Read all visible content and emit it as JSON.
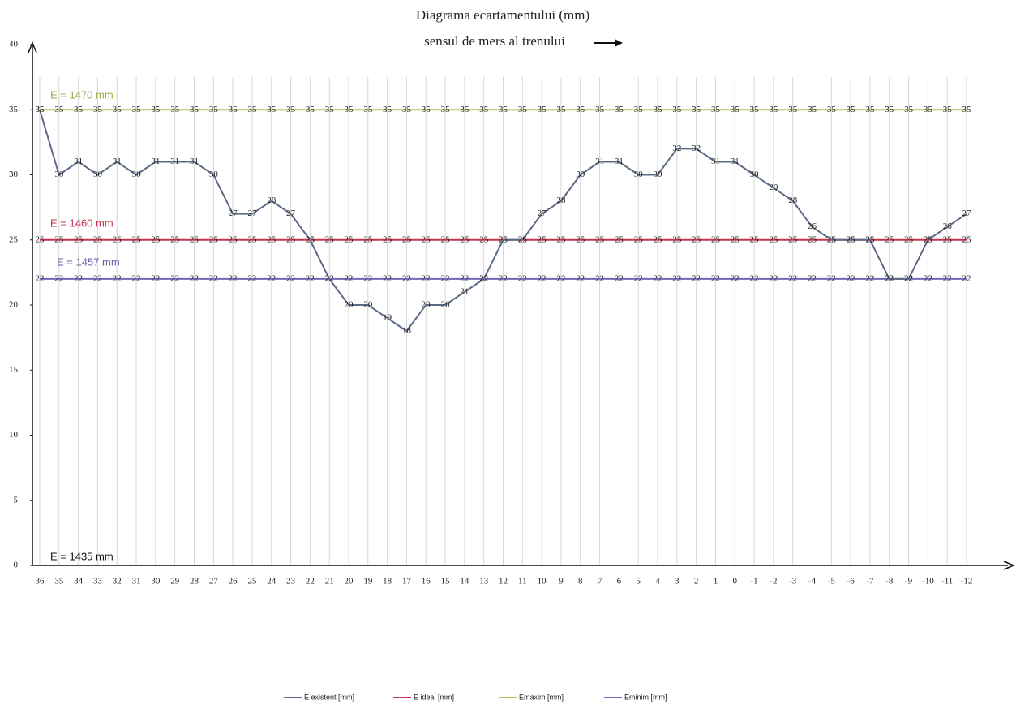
{
  "chart_data": {
    "type": "line",
    "title": "Diagrama ecartamentului (mm)",
    "subtitle": "sensul de mers al trenului",
    "categories": [
      "36",
      "35",
      "34",
      "33",
      "32",
      "31",
      "30",
      "29",
      "28",
      "27",
      "26",
      "25",
      "24",
      "23",
      "22",
      "21",
      "20",
      "19",
      "18",
      "17",
      "16",
      "15",
      "14",
      "13",
      "12",
      "11",
      "10",
      "9",
      "8",
      "7",
      "6",
      "5",
      "4",
      "3",
      "2",
      "1",
      "0",
      "-1",
      "-2",
      "-3",
      "-4",
      "-5",
      "-6",
      "-7",
      "-8",
      "-9",
      "-10",
      "-11",
      "-12"
    ],
    "series": [
      {
        "name": "E existent [mm]",
        "color": "#5b6a86",
        "values": [
          35,
          30,
          31,
          30,
          31,
          30,
          31,
          31,
          31,
          30,
          27,
          27,
          28,
          27,
          25,
          22,
          20,
          20,
          19,
          18,
          20,
          20,
          21,
          22,
          25,
          25,
          27,
          28,
          30,
          31,
          31,
          30,
          30,
          32,
          32,
          31,
          31,
          30,
          29,
          28,
          26,
          25,
          25,
          25,
          22,
          22,
          25,
          26,
          27
        ]
      },
      {
        "name": "E ideal [mm]",
        "color": "#c8334f",
        "values": [
          25,
          25,
          25,
          25,
          25,
          25,
          25,
          25,
          25,
          25,
          25,
          25,
          25,
          25,
          25,
          25,
          25,
          25,
          25,
          25,
          25,
          25,
          25,
          25,
          25,
          25,
          25,
          25,
          25,
          25,
          25,
          25,
          25,
          25,
          25,
          25,
          25,
          25,
          25,
          25,
          25,
          25,
          25,
          25,
          25,
          25,
          25,
          25,
          25
        ]
      },
      {
        "name": "Emaxim [mm]",
        "color": "#adc35f",
        "values": [
          35,
          35,
          35,
          35,
          35,
          35,
          35,
          35,
          35,
          35,
          35,
          35,
          35,
          35,
          35,
          35,
          35,
          35,
          35,
          35,
          35,
          35,
          35,
          35,
          35,
          35,
          35,
          35,
          35,
          35,
          35,
          35,
          35,
          35,
          35,
          35,
          35,
          35,
          35,
          35,
          35,
          35,
          35,
          35,
          35,
          35,
          35,
          35,
          35
        ]
      },
      {
        "name": "Eminim [mm]",
        "color": "#7466b8",
        "values": [
          22,
          22,
          22,
          22,
          22,
          22,
          22,
          22,
          22,
          22,
          22,
          22,
          22,
          22,
          22,
          22,
          22,
          22,
          22,
          22,
          22,
          22,
          22,
          22,
          22,
          22,
          22,
          22,
          22,
          22,
          22,
          22,
          22,
          22,
          22,
          22,
          22,
          22,
          22,
          22,
          22,
          22,
          22,
          22,
          22,
          22,
          22,
          22,
          22
        ]
      }
    ],
    "annotations": [
      "E = 1470 mm",
      "E = 1460 mm",
      "E = 1457 mm",
      "E = 1435 mm"
    ],
    "ylim": [
      0,
      40
    ],
    "yticks": [
      0,
      5,
      10,
      15,
      20,
      25,
      30,
      35,
      40
    ],
    "grid": true
  }
}
